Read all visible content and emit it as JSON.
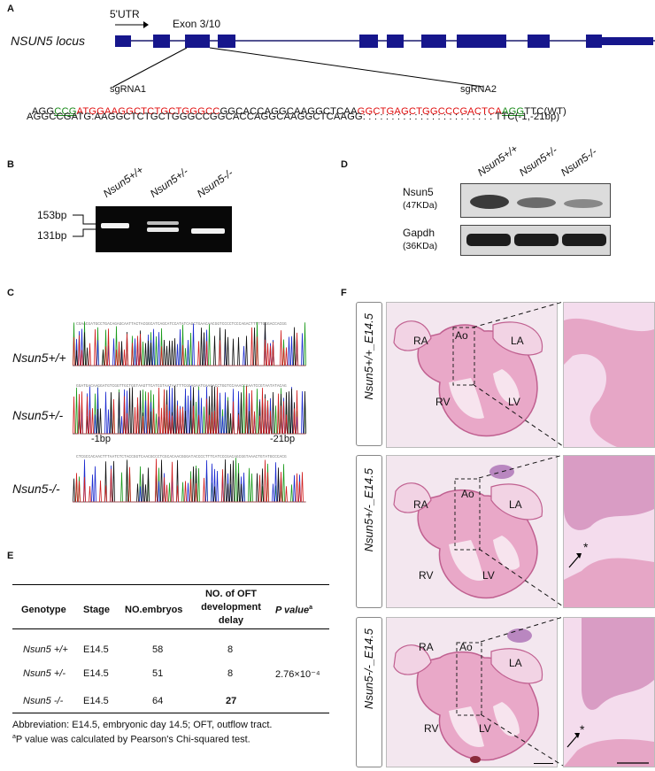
{
  "panelA": {
    "label": "A",
    "utr": "5'UTR",
    "exon": "Exon 3/10",
    "locus": "NSUN5 locus",
    "sgrna1": "sgRNA1",
    "sgrna2": "sgRNA2",
    "wt_seq": [
      {
        "t": "AGG",
        "c": "k"
      },
      {
        "t": "CCG",
        "c": "g"
      },
      {
        "t": "ATGGAAGGCTCTGCTGGGCC",
        "c": "r"
      },
      {
        "t": "GGCACCAGGCAAGGCTCAA",
        "c": "k"
      },
      {
        "t": "GGCTGAGCTGGCCCGACTCA",
        "c": "r"
      },
      {
        "t": "AGG",
        "c": "g"
      },
      {
        "t": "TTC(WT)",
        "c": "k"
      }
    ],
    "mut_seq": "AGGCCGATG:AAGGCTCTGCTGGGCCGGCACCAGGCAAGGCTCAAGG: : : : : : : : : : : : : : : : : : : : : : : TTC(-1,-21bp)"
  },
  "panelB": {
    "label": "B",
    "lanes": [
      "Nsun5+/+",
      "Nsun5+/-",
      "Nsun5-/-"
    ],
    "markers": [
      "153bp",
      "131bp"
    ]
  },
  "panelC": {
    "label": "C",
    "rows": [
      "Nsun5+/+",
      "Nsun5+/-",
      "Nsun5-/-"
    ],
    "mark1": "-1bp",
    "mark2": "-21bp"
  },
  "panelD": {
    "label": "D",
    "lanes": [
      "Nsun5+/+",
      "Nsun5+/-",
      "Nsun5-/-"
    ],
    "blot1_name": "Nsun5",
    "blot1_kda": "(47KDa)",
    "blot2_name": "Gapdh",
    "blot2_kda": "(36KDa)"
  },
  "panelE": {
    "label": "E",
    "headers": {
      "genotype": "Genotype",
      "stage": "Stage",
      "embryos": "NO.embryos",
      "oft1": "NO. of OFT",
      "oft2": "development",
      "oft3": "delay",
      "p": "P value"
    },
    "rows": [
      {
        "genotype": "Nsun5 +/+",
        "stage": "E14.5",
        "embryos": "58",
        "oft": "8"
      },
      {
        "genotype": "Nsun5 +/-",
        "stage": "E14.5",
        "embryos": "51",
        "oft": "8"
      },
      {
        "genotype": "Nsun5 -/-",
        "stage": "E14.5",
        "embryos": "64",
        "oft": "27"
      }
    ],
    "pvalue": "2.76×10⁻⁴",
    "note1": "Abbreviation: E14.5, embryonic day 14.5; OFT, outflow tract.",
    "note2": "P value was calculated by Pearson's Chi-squared test."
  },
  "panelF": {
    "label": "F",
    "rows": [
      {
        "genotype": "Nsun5+/+_E14.5"
      },
      {
        "genotype": "Nsun5+/-_E14.5"
      },
      {
        "genotype": "Nsun5-/-_E14.5"
      }
    ],
    "labels": {
      "ra": "RA",
      "ao": "Ao",
      "la": "LA",
      "rv": "RV",
      "lv": "LV"
    },
    "asterisk": "*"
  }
}
